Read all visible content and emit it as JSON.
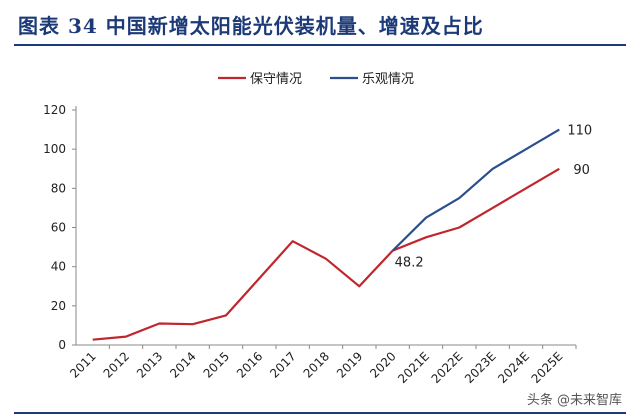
{
  "header": {
    "title": "图表  34    中国新增太阳能光伏装机量、增速及占比"
  },
  "watermark": "头条 @未来智库",
  "colors": {
    "title": "#1c3a78",
    "conservative": "#c0262d",
    "optimistic": "#2b4f8c"
  },
  "chart_data": {
    "type": "line",
    "title": "图表  34    中国新增太阳能光伏装机量、增速及占比",
    "xlabel": "",
    "ylabel": "",
    "ylim": [
      0,
      120
    ],
    "yticks": [
      0,
      20,
      40,
      60,
      80,
      100,
      120
    ],
    "categories": [
      "2011",
      "2012",
      "2013",
      "2014",
      "2015",
      "2016",
      "2017",
      "2018",
      "2019",
      "2020",
      "2021E",
      "2022E",
      "2023E",
      "2024E",
      "2025E"
    ],
    "legend_position": "top-center",
    "grid": false,
    "series": [
      {
        "name": "保守情况",
        "color": "#c0262d",
        "values": [
          2.7,
          4.3,
          11,
          10.6,
          15.1,
          34,
          53,
          44,
          30,
          48.2,
          55,
          60,
          70,
          80,
          90
        ]
      },
      {
        "name": "乐观情况",
        "color": "#2b4f8c",
        "values": [
          null,
          null,
          null,
          null,
          null,
          null,
          null,
          null,
          null,
          48.2,
          65,
          75,
          90,
          100,
          110
        ]
      }
    ],
    "annotations": [
      {
        "label": "48.2",
        "category": "2020",
        "value": 48.2
      },
      {
        "label": "110",
        "category": "2025E",
        "value": 110
      },
      {
        "label": "90",
        "category": "2025E",
        "value": 90
      }
    ]
  }
}
